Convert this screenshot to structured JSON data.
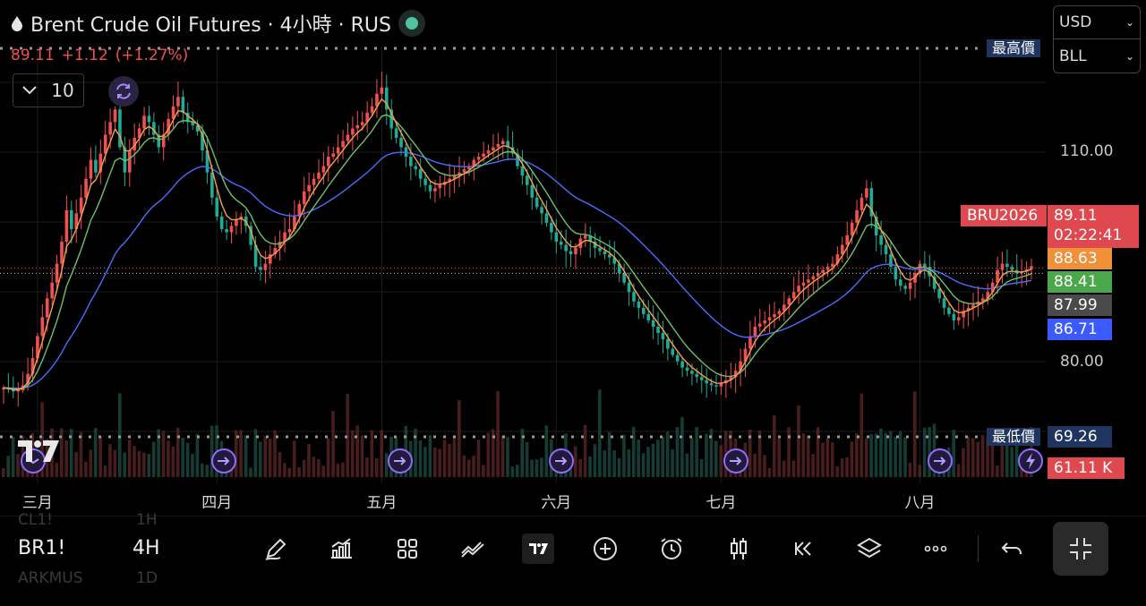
{
  "header": {
    "title": "Brent Crude Oil Futures · 4小時 · RUS",
    "last": "89.11",
    "change": "+1.12",
    "change_pct": "(+1.27%)",
    "indicator_count": "10",
    "currency": "USD",
    "unit": "BLL"
  },
  "markers": {
    "high_label": "最高價",
    "low_label": "最低價",
    "low_value": "69.26"
  },
  "price_axis": {
    "ticks": [
      "110.00",
      "80.00"
    ]
  },
  "tags": {
    "symbol": "BRU2026",
    "last_price": "89.11",
    "countdown": "02:22:41",
    "ma_fast": "88.63",
    "ma_mid": "88.41",
    "ref_price": "87.99",
    "ma_slow": "86.71",
    "volume": "61.11 K"
  },
  "toolbar": {
    "symbol": "BR1!",
    "interval": "4H",
    "ghost_top": [
      "CL1!",
      "1H"
    ],
    "ghost_bottom": [
      "ARKMUS",
      "1D"
    ]
  },
  "icons": [
    "drop-icon",
    "refresh-icon",
    "pen-icon",
    "indicators-icon",
    "layout-icon",
    "compare-icon",
    "tv-logo-icon",
    "plus-circle-icon",
    "alarm-icon",
    "candles-icon",
    "replay-icon",
    "layers-icon",
    "more-icon",
    "undo-icon",
    "collapse-icon",
    "arrow-event-icon",
    "flash-event-icon"
  ],
  "colors": {
    "up": "#f0504f",
    "down": "#22ab94",
    "ma_fast": "#f5a04a",
    "ma_mid": "#6cc06c",
    "ma_slow": "#4f6bff",
    "accent_blue": "#1f3a8a",
    "purple": "#8f6bff"
  },
  "chart_data": {
    "type": "line",
    "title": "Brent Crude Oil Futures · 4小時 · RUS",
    "xlabel": "",
    "ylabel": "",
    "ylim": [
      62,
      124
    ],
    "grid": true,
    "x_ticks": [
      "三月",
      "四月",
      "五月",
      "六月",
      "七月",
      "八月"
    ],
    "x_tick_index": [
      7,
      44,
      78,
      114,
      148,
      189
    ],
    "dotted_levels": [
      87.99,
      88.8
    ],
    "series": [
      {
        "name": "",
        "role": "close",
        "values": [
          69.8,
          69.5,
          69.2,
          69.4,
          70.2,
          72.0,
          74.5,
          78.0,
          81.0,
          84.0,
          86.5,
          89.5,
          93.0,
          98.0,
          95.0,
          97.5,
          100.0,
          103.0,
          106.0,
          104.0,
          107.0,
          110.0,
          112.0,
          114.0,
          108.0,
          104.0,
          107.5,
          109.5,
          111.0,
          113.0,
          112.0,
          110.0,
          108.0,
          110.0,
          112.5,
          114.5,
          116.0,
          113.5,
          112.0,
          111.5,
          110.5,
          107.5,
          104.0,
          100.0,
          97.0,
          95.0,
          94.5,
          95.5,
          96.5,
          97.0,
          95.5,
          92.5,
          89.0,
          88.5,
          89.5,
          91.0,
          92.0,
          93.0,
          94.5,
          95.0,
          97.0,
          99.0,
          101.0,
          102.0,
          103.0,
          104.0,
          105.0,
          106.5,
          107.0,
          108.0,
          109.0,
          110.0,
          111.0,
          111.5,
          112.0,
          113.5,
          114.5,
          116.5,
          117.5,
          114.0,
          111.0,
          109.5,
          108.0,
          106.5,
          105.0,
          104.5,
          103.0,
          102.0,
          101.0,
          101.5,
          102.0,
          102.5,
          103.0,
          103.5,
          104.0,
          104.5,
          105.0,
          106.0,
          106.5,
          107.0,
          107.5,
          108.0,
          108.5,
          109.0,
          108.0,
          107.0,
          105.0,
          103.5,
          102.0,
          100.0,
          98.5,
          97.5,
          96.0,
          94.5,
          93.0,
          92.5,
          91.5,
          91.0,
          92.0,
          93.5,
          94.0,
          93.0,
          92.0,
          91.5,
          91.0,
          90.5,
          89.5,
          88.0,
          86.5,
          85.0,
          83.5,
          82.5,
          81.5,
          80.5,
          79.5,
          78.5,
          77.5,
          76.0,
          75.0,
          74.0,
          73.0,
          72.5,
          72.0,
          71.5,
          71.0,
          70.5,
          70.2,
          70.0,
          70.5,
          71.0,
          71.5,
          72.5,
          74.0,
          76.0,
          78.0,
          79.5,
          80.0,
          80.5,
          81.0,
          81.5,
          82.0,
          83.0,
          84.0,
          85.0,
          86.0,
          86.5,
          87.0,
          87.5,
          88.0,
          88.5,
          89.0,
          89.5,
          91.0,
          92.5,
          94.0,
          96.0,
          98.0,
          100.0,
          101.5,
          97.0,
          94.0,
          92.5,
          91.0,
          89.0,
          87.0,
          86.0,
          85.5,
          86.5,
          88.0,
          89.5,
          89.0,
          87.5,
          85.5,
          84.0,
          82.5,
          81.5,
          80.5,
          81.0,
          82.0,
          82.5,
          83.0,
          83.5,
          84.0,
          85.0,
          86.5,
          88.5,
          89.5,
          89.0,
          88.5,
          88.0,
          88.2,
          88.6,
          89.11
        ]
      },
      {
        "name": "",
        "role": "ma_fast",
        "last": 88.63
      },
      {
        "name": "",
        "role": "ma_mid",
        "last": 88.41
      },
      {
        "name": "",
        "role": "ma_slow",
        "last": 86.71
      }
    ]
  }
}
